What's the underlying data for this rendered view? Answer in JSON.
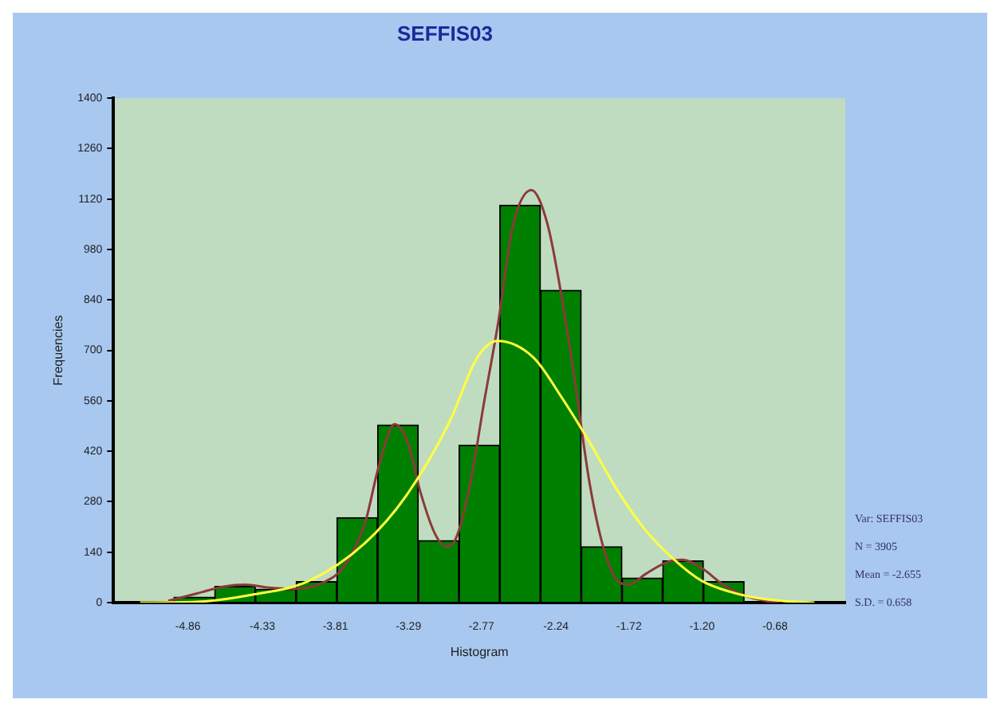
{
  "chart_data": {
    "type": "histogram",
    "title": "SEFFIS03",
    "xlabel": "Histogram",
    "ylabel": "Frequencies",
    "bins": [
      -4.96,
      -4.67,
      -4.38,
      -4.09,
      -3.8,
      -3.51,
      -3.22,
      -2.93,
      -2.64,
      -2.35,
      -2.06,
      -1.77,
      -1.48,
      -1.19,
      -0.9
    ],
    "series": [
      {
        "color": "#008000",
        "values": [
          15,
          45,
          37,
          58,
          236,
          493,
          172,
          437,
          1103,
          867,
          155,
          68,
          116,
          58
        ]
      },
      {
        "type": "line",
        "color": "#ffff40",
        "x": [
          -5.2,
          -4.8,
          -4.4,
          -4.0,
          -3.6,
          -3.3,
          -3.0,
          -2.8,
          -2.655,
          -2.4,
          -2.2,
          -2.0,
          -1.8,
          -1.6,
          -1.4,
          -1.2,
          -1.0,
          -0.8,
          -0.6,
          -0.4
        ],
        "values": [
          0,
          2,
          22,
          60,
          165,
          300,
          500,
          680,
          726,
          680,
          570,
          445,
          310,
          200,
          120,
          60,
          30,
          12,
          4,
          0
        ]
      },
      {
        "type": "line",
        "color": "#8b3a3a",
        "x": [
          -5.0,
          -4.8,
          -4.6,
          -4.45,
          -4.3,
          -4.1,
          -3.9,
          -3.75,
          -3.6,
          -3.5,
          -3.39,
          -3.3,
          -3.2,
          -3.1,
          -3.02,
          -2.95,
          -2.85,
          -2.75,
          -2.65,
          -2.55,
          -2.415,
          -2.3,
          -2.2,
          -2.1,
          -2.0,
          -1.9,
          -1.8,
          -1.72,
          -1.6,
          -1.45,
          -1.34,
          -1.2,
          -1.05,
          -0.9,
          -0.75,
          -0.65
        ],
        "values": [
          5,
          25,
          45,
          50,
          42,
          38,
          55,
          100,
          220,
          380,
          495,
          450,
          300,
          190,
          155,
          180,
          330,
          560,
          780,
          1040,
          1145,
          1050,
          850,
          600,
          330,
          150,
          60,
          50,
          80,
          112,
          119,
          95,
          50,
          20,
          5,
          0
        ]
      }
    ],
    "xlim": [
      -5.39,
      -0.18
    ],
    "xticks": [
      -4.86,
      -4.33,
      -3.81,
      -3.29,
      -2.77,
      -2.24,
      -1.72,
      {
        "value": -1.2,
        "label": "-1.20"
      },
      -0.68
    ],
    "ylim": [
      0,
      1400
    ],
    "yticks": [
      0,
      140,
      280,
      420,
      560,
      700,
      840,
      980,
      1120,
      1260,
      1400
    ],
    "grid": false,
    "legend": false,
    "marker": "none",
    "annotations": [
      "Var: SEFFIS03",
      "N = 3905",
      "Mean = -2.655",
      "S.D. = 0.658"
    ]
  }
}
